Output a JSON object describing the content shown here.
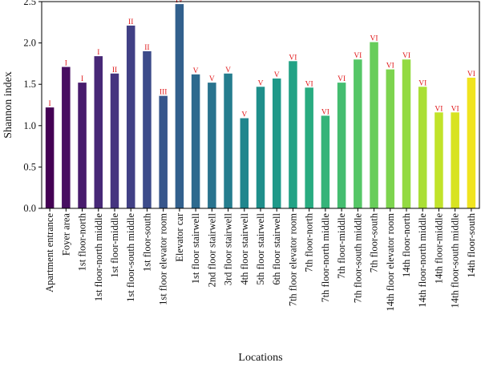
{
  "chart_data": {
    "type": "bar",
    "xlabel": "Locations",
    "ylabel": "Shannon index",
    "ylim": [
      0,
      2.5
    ],
    "yticks": [
      "0.0",
      "0.5",
      "1.0",
      "1.5",
      "2.0",
      "2.5"
    ],
    "grid": false,
    "bars": [
      {
        "category": "Apartment entrance",
        "value": 1.22,
        "label": "I",
        "color": "#440154"
      },
      {
        "category": "Foyer area",
        "value": 1.71,
        "label": "I",
        "color": "#470e61"
      },
      {
        "category": "1st floor-north",
        "value": 1.52,
        "label": "I",
        "color": "#481b6d"
      },
      {
        "category": "1st floor-north middle",
        "value": 1.84,
        "label": "I",
        "color": "#472877"
      },
      {
        "category": "1st floor-middle",
        "value": 1.63,
        "label": "II",
        "color": "#45347f"
      },
      {
        "category": "1st floor-south middle",
        "value": 2.21,
        "label": "II",
        "color": "#414085"
      },
      {
        "category": "1st floor-south",
        "value": 1.9,
        "label": "II",
        "color": "#3c4b8a"
      },
      {
        "category": "1st floor elevator room",
        "value": 1.36,
        "label": "III",
        "color": "#37568c"
      },
      {
        "category": "Elevator car",
        "value": 2.47,
        "label": "IV",
        "color": "#32608d"
      },
      {
        "category": "1st floor stairwell",
        "value": 1.62,
        "label": "V",
        "color": "#2d6a8e"
      },
      {
        "category": "2nd floor stairwell",
        "value": 1.52,
        "label": "V",
        "color": "#29738e"
      },
      {
        "category": "3rd floor stairwell",
        "value": 1.63,
        "label": "V",
        "color": "#257d8e"
      },
      {
        "category": "4th floor stairwell",
        "value": 1.09,
        "label": "V",
        "color": "#21868d"
      },
      {
        "category": "5th floor stairwell",
        "value": 1.47,
        "label": "V",
        "color": "#1f8f8b"
      },
      {
        "category": "6th floor stairwell",
        "value": 1.57,
        "label": "V",
        "color": "#1f9989"
      },
      {
        "category": "7th floor elevator room",
        "value": 1.78,
        "label": "VI",
        "color": "#22a285"
      },
      {
        "category": "7th floor-north",
        "value": 1.46,
        "label": "VI",
        "color": "#29ab80"
      },
      {
        "category": "7th floor-north middle",
        "value": 1.12,
        "label": "VI",
        "color": "#35b479"
      },
      {
        "category": "7th floor-middle",
        "value": 1.52,
        "label": "VI",
        "color": "#44bd70"
      },
      {
        "category": "7th floor-south middle",
        "value": 1.8,
        "label": "VI",
        "color": "#55c666"
      },
      {
        "category": "7th floor-south",
        "value": 2.01,
        "label": "VI",
        "color": "#68cd5b"
      },
      {
        "category": "14th floor elevator room",
        "value": 1.68,
        "label": "VI",
        "color": "#7dd44f"
      },
      {
        "category": "14th floor-north",
        "value": 1.8,
        "label": "VI",
        "color": "#93da42"
      },
      {
        "category": "14th floor-north middle",
        "value": 1.47,
        "label": "VI",
        "color": "#aadf35"
      },
      {
        "category": "14th floor-middle",
        "value": 1.16,
        "label": "VI",
        "color": "#c1e32a"
      },
      {
        "category": "14th floor-south middle",
        "value": 1.16,
        "label": "VI",
        "color": "#d8e322"
      },
      {
        "category": "14th floor-south",
        "value": 1.58,
        "label": "VI",
        "color": "#f0e41f"
      }
    ]
  }
}
